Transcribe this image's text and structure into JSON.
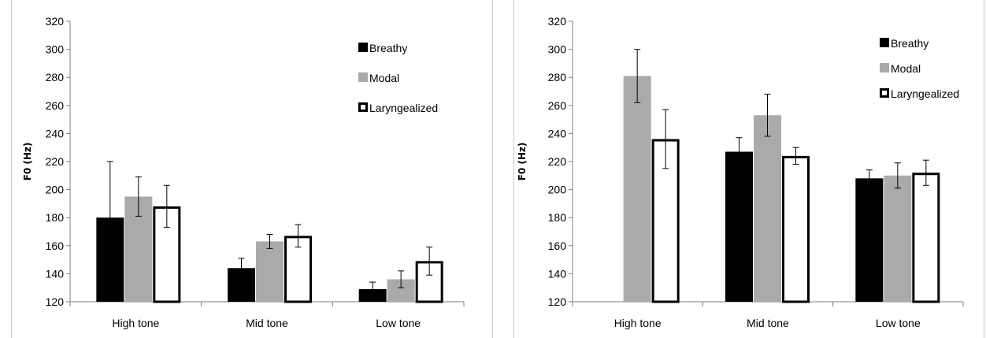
{
  "chart_data": [
    {
      "type": "bar",
      "ylabel": "F0 (Hz)",
      "xlabel": "",
      "title": "",
      "ylim": [
        120,
        320
      ],
      "yticks": [
        120,
        140,
        160,
        180,
        200,
        220,
        240,
        260,
        280,
        300,
        320
      ],
      "categories": [
        "High tone",
        "Mid tone",
        "Low tone"
      ],
      "series": [
        {
          "name": "Breathy",
          "values": [
            180,
            144,
            129
          ],
          "errors": [
            40,
            7,
            5
          ],
          "color": "#000000",
          "style": "filled"
        },
        {
          "name": "Modal",
          "values": [
            195,
            163,
            136
          ],
          "errors": [
            14,
            5,
            6
          ],
          "color": "#aaaaaa",
          "style": "filled"
        },
        {
          "name": "Laryngealized",
          "values": [
            188,
            167,
            149
          ],
          "errors": [
            15,
            8,
            10
          ],
          "color": "#000000",
          "style": "outline"
        }
      ],
      "legend": "top-right",
      "grid": false
    },
    {
      "type": "bar",
      "ylabel": "F0 (Hz)",
      "xlabel": "",
      "title": "",
      "ylim": [
        120,
        320
      ],
      "yticks": [
        120,
        140,
        160,
        180,
        200,
        220,
        240,
        260,
        280,
        300,
        320
      ],
      "categories": [
        "High tone",
        "Mid tone",
        "Low tone"
      ],
      "series": [
        {
          "name": "Breathy",
          "values": [
            120,
            227,
            208
          ],
          "errors": [
            0,
            10,
            6
          ],
          "color": "#000000",
          "style": "filled"
        },
        {
          "name": "Modal",
          "values": [
            281,
            253,
            210
          ],
          "errors": [
            19,
            15,
            9
          ],
          "color": "#aaaaaa",
          "style": "filled"
        },
        {
          "name": "Laryngealized",
          "values": [
            236,
            224,
            212
          ],
          "errors": [
            21,
            6,
            9
          ],
          "color": "#000000",
          "style": "outline"
        }
      ],
      "legend": "top-right",
      "grid": false
    }
  ]
}
